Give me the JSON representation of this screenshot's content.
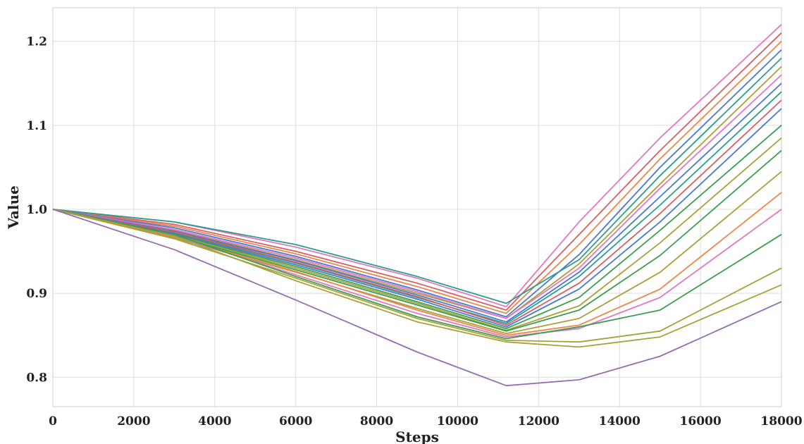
{
  "chart_data": {
    "type": "line",
    "title": "",
    "xlabel": "Steps",
    "ylabel": "Value",
    "xlim": [
      0,
      18000
    ],
    "ylim": [
      0.765,
      1.24
    ],
    "xticks": [
      0,
      2000,
      4000,
      6000,
      8000,
      10000,
      12000,
      14000,
      16000,
      18000
    ],
    "yticks": [
      0.8,
      0.9,
      1.0,
      1.1,
      1.2
    ],
    "ytick_labels": [
      "0.8",
      "0.9",
      "1.0",
      "1.1",
      "1.2"
    ],
    "grid": true,
    "legend": false,
    "x": [
      0,
      3000,
      6000,
      9000,
      11200,
      13000,
      15000,
      18000
    ],
    "series": [
      {
        "color": "#e377c2",
        "values": [
          1.0,
          0.985,
          0.955,
          0.918,
          0.884,
          0.985,
          1.085,
          1.22
        ]
      },
      {
        "color": "#d65f5f",
        "values": [
          1.0,
          0.982,
          0.95,
          0.912,
          0.88,
          0.97,
          1.07,
          1.21
        ]
      },
      {
        "color": "#ee854a",
        "values": [
          1.0,
          0.98,
          0.947,
          0.908,
          0.876,
          0.958,
          1.06,
          1.2
        ]
      },
      {
        "color": "#4878d0",
        "values": [
          1.0,
          0.978,
          0.944,
          0.904,
          0.872,
          0.946,
          1.05,
          1.19
        ]
      },
      {
        "color": "#2a9d8f",
        "values": [
          1.0,
          0.985,
          0.958,
          0.92,
          0.888,
          0.94,
          1.04,
          1.18
        ]
      },
      {
        "color": "#a8a13a",
        "values": [
          1.0,
          0.975,
          0.94,
          0.9,
          0.87,
          0.935,
          1.03,
          1.17
        ]
      },
      {
        "color": "#e377c2",
        "values": [
          1.0,
          0.976,
          0.942,
          0.902,
          0.87,
          0.93,
          1.025,
          1.16
        ]
      },
      {
        "color": "#4878d0",
        "values": [
          1.0,
          0.974,
          0.939,
          0.898,
          0.866,
          0.925,
          1.015,
          1.15
        ]
      },
      {
        "color": "#2a9d8f",
        "values": [
          1.0,
          0.972,
          0.936,
          0.895,
          0.864,
          0.92,
          1.005,
          1.14
        ]
      },
      {
        "color": "#d65f5f",
        "values": [
          1.0,
          0.973,
          0.937,
          0.896,
          0.862,
          0.912,
          0.995,
          1.13
        ]
      },
      {
        "color": "#4878d0",
        "values": [
          1.0,
          0.971,
          0.934,
          0.893,
          0.86,
          0.905,
          0.985,
          1.12
        ]
      },
      {
        "color": "#3a9e4e",
        "values": [
          1.0,
          0.97,
          0.932,
          0.89,
          0.858,
          0.895,
          0.975,
          1.1
        ]
      },
      {
        "color": "#a8a13a",
        "values": [
          1.0,
          0.969,
          0.93,
          0.888,
          0.856,
          0.885,
          0.96,
          1.085
        ]
      },
      {
        "color": "#3a9e4e",
        "values": [
          1.0,
          0.968,
          0.928,
          0.886,
          0.855,
          0.88,
          0.945,
          1.07
        ]
      },
      {
        "color": "#a8a13a",
        "values": [
          1.0,
          0.966,
          0.925,
          0.882,
          0.852,
          0.87,
          0.925,
          1.045
        ]
      },
      {
        "color": "#ee854a",
        "values": [
          1.0,
          0.967,
          0.926,
          0.88,
          0.85,
          0.862,
          0.905,
          1.02
        ]
      },
      {
        "color": "#e377c2",
        "values": [
          1.0,
          0.968,
          0.922,
          0.876,
          0.848,
          0.858,
          0.895,
          1.0
        ]
      },
      {
        "color": "#3a9e4e",
        "values": [
          1.0,
          0.97,
          0.92,
          0.872,
          0.846,
          0.86,
          0.88,
          0.97
        ]
      },
      {
        "color": "#a8a13a",
        "values": [
          1.0,
          0.965,
          0.918,
          0.87,
          0.844,
          0.842,
          0.855,
          0.93
        ]
      },
      {
        "color": "#a8a13a",
        "values": [
          1.0,
          0.968,
          0.915,
          0.866,
          0.842,
          0.836,
          0.848,
          0.91
        ]
      },
      {
        "color": "#956cb4",
        "values": [
          1.0,
          0.952,
          0.892,
          0.83,
          0.79,
          0.797,
          0.825,
          0.89
        ]
      }
    ]
  }
}
